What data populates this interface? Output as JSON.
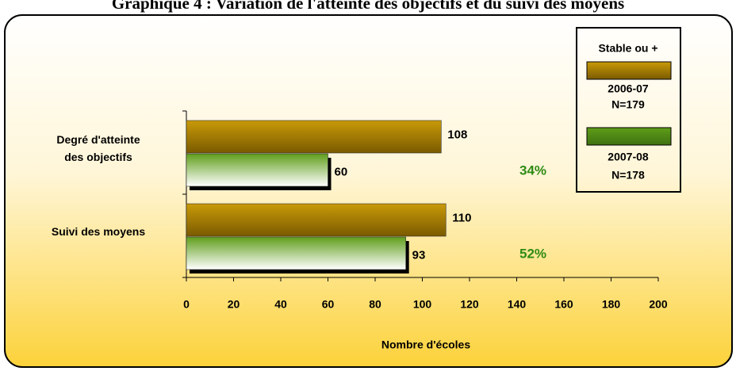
{
  "chart_data": {
    "type": "bar",
    "orientation": "horizontal",
    "title": "Graphique 4 : Variation de l'atteinte des objectifs et du suivi des moyens",
    "categories": [
      [
        "Degré d'atteinte",
        "des objectifs"
      ],
      [
        "Suivi des moyens"
      ]
    ],
    "series": [
      {
        "name": "2006-07",
        "n_label": "N=179",
        "color": "#c99a08",
        "values": [
          108,
          110
        ]
      },
      {
        "name": "2007-08",
        "n_label": "N=178",
        "color": "#5f9e1a",
        "values": [
          60,
          93
        ]
      }
    ],
    "legend_title": "Stable ou +",
    "annotations": [
      "34%",
      "52%"
    ],
    "annotation_color": "#2e8b14",
    "xlabel": "Nombre d'écoles",
    "xlim": [
      0,
      200
    ],
    "xticks": [
      0,
      20,
      40,
      60,
      80,
      100,
      120,
      140,
      160,
      180,
      200
    ],
    "legend_position": "upper right"
  }
}
